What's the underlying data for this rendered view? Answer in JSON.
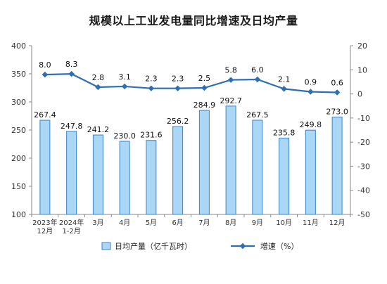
{
  "chart_data": {
    "type": "bar",
    "title": "规模以上工业发电量同比增速及日均产量",
    "categories": [
      [
        "2023年",
        "12月"
      ],
      [
        "2024年",
        "1-2月"
      ],
      [
        "3月"
      ],
      [
        "4月"
      ],
      [
        "5月"
      ],
      [
        "6月"
      ],
      [
        "7月"
      ],
      [
        "8月"
      ],
      [
        "9月"
      ],
      [
        "10月"
      ],
      [
        "11月"
      ],
      [
        "12月"
      ]
    ],
    "series": [
      {
        "name": "日均产量（亿千瓦时）",
        "type": "bar",
        "axis": "left",
        "color": "#a9d7f5",
        "border_color": "#3a84c4",
        "values": [
          267.4,
          247.8,
          241.2,
          230.0,
          231.6,
          256.2,
          284.9,
          292.7,
          267.5,
          235.8,
          249.8,
          273.0
        ],
        "labels": [
          "267.4",
          "247.8",
          "241.2",
          "230.0",
          "231.6",
          "256.2",
          "284.9",
          "292.7",
          "267.5",
          "235.8",
          "249.8",
          "273.0"
        ]
      },
      {
        "name": "增速（%）",
        "type": "line",
        "axis": "right",
        "color": "#2f6fb1",
        "values": [
          8.0,
          8.3,
          2.8,
          3.1,
          2.3,
          2.3,
          2.5,
          5.8,
          6.0,
          2.1,
          0.9,
          0.6
        ],
        "labels": [
          "8.0",
          "8.3",
          "2.8",
          "3.1",
          "2.3",
          "2.3",
          "2.5",
          "5.8",
          "6.0",
          "2.1",
          "0.9",
          "0.6"
        ]
      }
    ],
    "y_left": {
      "range": [
        100,
        400
      ],
      "ticks": [
        100,
        150,
        200,
        250,
        300,
        350,
        400
      ]
    },
    "y_right": {
      "range": [
        -50,
        20
      ],
      "ticks": [
        -50,
        -40,
        -30,
        -20,
        -10,
        0,
        10,
        20
      ]
    },
    "grid": false,
    "legend_position": "bottom"
  }
}
